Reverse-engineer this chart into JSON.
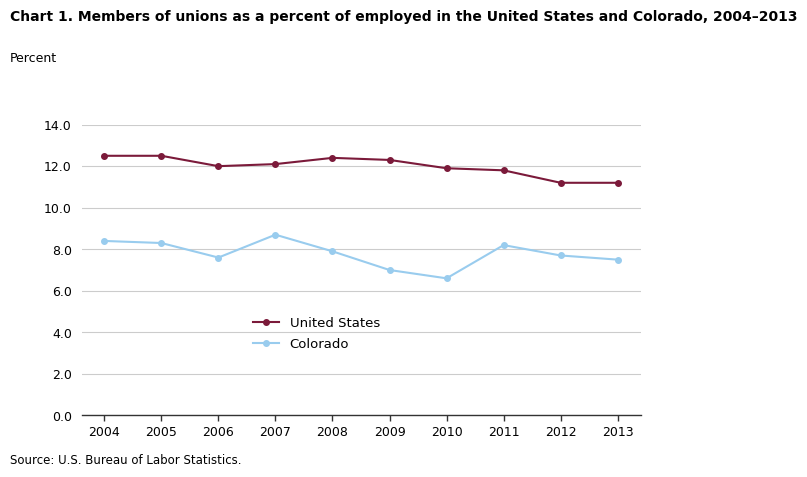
{
  "title": "Chart 1. Members of unions as a percent of employed in the United States and Colorado, 2004–2013",
  "ylabel": "Percent",
  "source": "Source: U.S. Bureau of Labor Statistics.",
  "years": [
    2004,
    2005,
    2006,
    2007,
    2008,
    2009,
    2010,
    2011,
    2012,
    2013
  ],
  "us_values": [
    12.5,
    12.5,
    12.0,
    12.1,
    12.4,
    12.3,
    11.9,
    11.8,
    11.2,
    11.2
  ],
  "co_values": [
    8.4,
    8.3,
    7.6,
    8.7,
    7.9,
    7.0,
    6.6,
    8.2,
    7.7,
    7.5
  ],
  "us_color": "#7B1A3A",
  "co_color": "#99CCEE",
  "us_label": "United States",
  "co_label": "Colorado",
  "ylim": [
    0.0,
    14.0
  ],
  "yticks": [
    0.0,
    2.0,
    4.0,
    6.0,
    8.0,
    10.0,
    12.0,
    14.0
  ],
  "grid_color": "#cccccc",
  "bg_color": "#ffffff",
  "title_fontsize": 10,
  "tick_fontsize": 9,
  "legend_fontsize": 9.5,
  "source_fontsize": 8.5,
  "linewidth": 1.5,
  "marker_size": 4
}
